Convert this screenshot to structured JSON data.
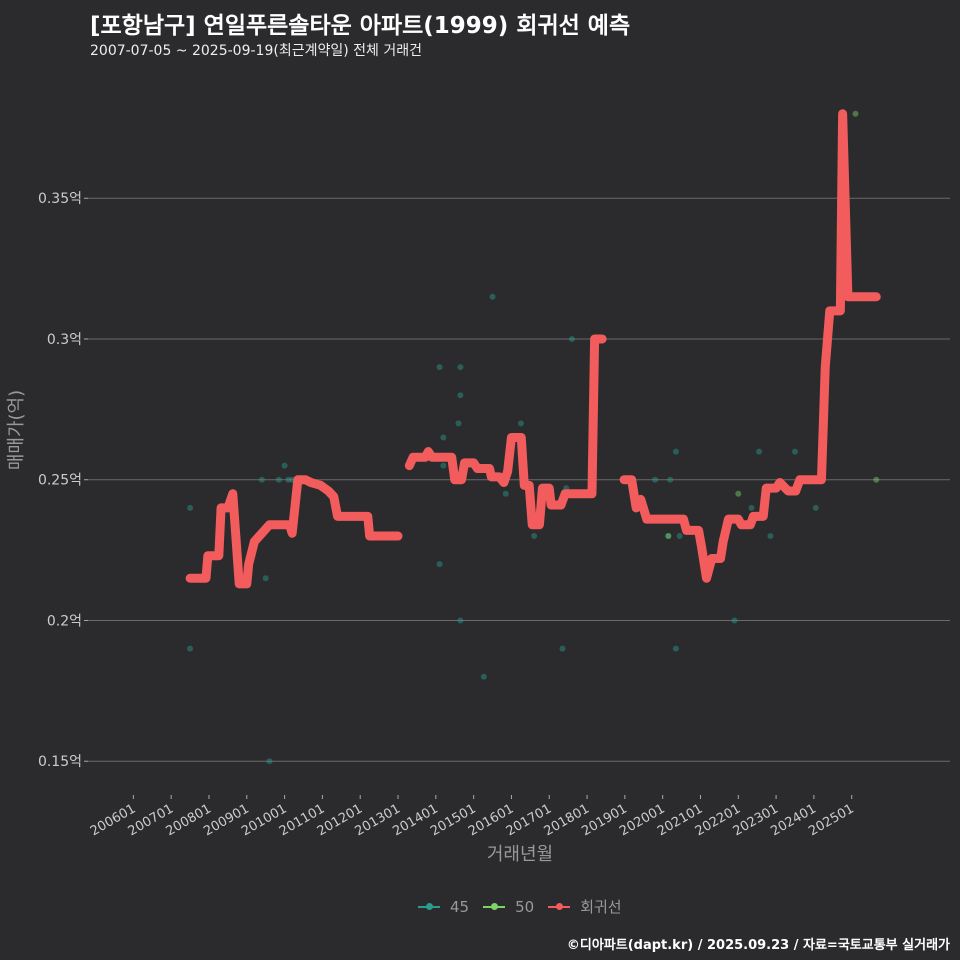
{
  "title": "[포항남구] 연일푸른솔타운 아파트(1999) 회귀선 예측",
  "subtitle": "2007-07-05 ~ 2025-09-19(최근계약일) 전체 거래건",
  "credit": "©디아파트(dapt.kr) / 2025.09.23 / 자료=국토교통부 실거래가",
  "chart_data": {
    "type": "scatter+line",
    "xlabel": "거래년월",
    "ylabel": "매매가(억)",
    "x_ticks": [
      "200601",
      "200701",
      "200801",
      "200901",
      "201001",
      "201101",
      "201201",
      "201301",
      "201401",
      "201501",
      "201601",
      "201701",
      "201801",
      "201901",
      "202001",
      "202101",
      "202201",
      "202301",
      "202401",
      "202501"
    ],
    "y_ticks": [
      {
        "v": 0.15,
        "label": "0.15억"
      },
      {
        "v": 0.2,
        "label": "0.2억"
      },
      {
        "v": 0.25,
        "label": "0.25억"
      },
      {
        "v": 0.3,
        "label": "0.3억"
      },
      {
        "v": 0.35,
        "label": "0.35억"
      }
    ],
    "xlim": [
      2004.8,
      2027.6
    ],
    "ylim": [
      0.138,
      0.392
    ],
    "grid": true,
    "legend_position": "bottom",
    "legend": [
      {
        "name": "45",
        "color": "#2a9d8f"
      },
      {
        "name": "50",
        "color": "#7bd36b"
      },
      {
        "name": "회귀선",
        "color": "#f25c5c"
      }
    ],
    "series_points": [
      {
        "name": "45",
        "points": [
          [
            2007.5,
            0.24
          ],
          [
            2007.5,
            0.19
          ],
          [
            2009.4,
            0.25
          ],
          [
            2009.5,
            0.215
          ],
          [
            2009.6,
            0.15
          ],
          [
            2009.85,
            0.25
          ],
          [
            2010.0,
            0.255
          ],
          [
            2010.1,
            0.25
          ],
          [
            2010.2,
            0.25
          ],
          [
            2014.1,
            0.29
          ],
          [
            2014.1,
            0.22
          ],
          [
            2014.2,
            0.265
          ],
          [
            2014.2,
            0.255
          ],
          [
            2014.6,
            0.27
          ],
          [
            2014.65,
            0.28
          ],
          [
            2014.65,
            0.29
          ],
          [
            2014.65,
            0.2
          ],
          [
            2015.27,
            0.18
          ],
          [
            2015.5,
            0.315
          ],
          [
            2015.85,
            0.245
          ],
          [
            2016.25,
            0.27
          ],
          [
            2016.6,
            0.23
          ],
          [
            2017.35,
            0.19
          ],
          [
            2017.6,
            0.3
          ],
          [
            2017.45,
            0.247
          ],
          [
            2019.8,
            0.25
          ],
          [
            2020.15,
            0.23
          ],
          [
            2020.2,
            0.25
          ],
          [
            2020.35,
            0.26
          ],
          [
            2020.35,
            0.19
          ],
          [
            2020.45,
            0.23
          ],
          [
            2021.9,
            0.2
          ],
          [
            2022.35,
            0.24
          ],
          [
            2022.55,
            0.26
          ],
          [
            2022.85,
            0.23
          ],
          [
            2023.5,
            0.26
          ],
          [
            2024.05,
            0.24
          ]
        ]
      },
      {
        "name": "50",
        "points": [
          [
            2022.0,
            0.245
          ],
          [
            2025.1,
            0.38
          ],
          [
            2025.65,
            0.25
          ],
          [
            2020.15,
            0.23
          ]
        ]
      }
    ],
    "regression_segments": [
      [
        [
          2007.5,
          0.215
        ],
        [
          2007.92,
          0.215
        ],
        [
          2007.97,
          0.223
        ],
        [
          2008.26,
          0.223
        ],
        [
          2008.32,
          0.24
        ],
        [
          2008.5,
          0.24
        ],
        [
          2008.63,
          0.245
        ],
        [
          2008.8,
          0.213
        ],
        [
          2009.0,
          0.213
        ],
        [
          2009.05,
          0.22
        ],
        [
          2009.2,
          0.228
        ],
        [
          2009.4,
          0.231
        ],
        [
          2009.6,
          0.234
        ],
        [
          2010.13,
          0.234
        ],
        [
          2010.2,
          0.231
        ],
        [
          2010.35,
          0.25
        ],
        [
          2010.55,
          0.25
        ],
        [
          2010.7,
          0.249
        ],
        [
          2010.95,
          0.248
        ],
        [
          2011.16,
          0.246
        ],
        [
          2011.3,
          0.244
        ],
        [
          2011.4,
          0.237
        ],
        [
          2012.2,
          0.237
        ],
        [
          2012.25,
          0.23
        ],
        [
          2013.0,
          0.23
        ]
      ],
      [
        [
          2013.3,
          0.255
        ],
        [
          2013.4,
          0.258
        ],
        [
          2013.72,
          0.258
        ],
        [
          2013.8,
          0.26
        ],
        [
          2013.9,
          0.258
        ],
        [
          2014.42,
          0.258
        ],
        [
          2014.5,
          0.25
        ],
        [
          2014.68,
          0.25
        ],
        [
          2014.76,
          0.256
        ],
        [
          2015.0,
          0.256
        ],
        [
          2015.1,
          0.254
        ],
        [
          2015.42,
          0.254
        ],
        [
          2015.47,
          0.251
        ],
        [
          2015.68,
          0.251
        ],
        [
          2015.8,
          0.249
        ],
        [
          2015.9,
          0.253
        ],
        [
          2016.0,
          0.265
        ],
        [
          2016.26,
          0.265
        ],
        [
          2016.34,
          0.248
        ],
        [
          2016.47,
          0.248
        ],
        [
          2016.55,
          0.234
        ],
        [
          2016.74,
          0.234
        ],
        [
          2016.82,
          0.247
        ],
        [
          2017.0,
          0.247
        ],
        [
          2017.05,
          0.241
        ],
        [
          2017.31,
          0.241
        ],
        [
          2017.42,
          0.245
        ],
        [
          2018.13,
          0.245
        ],
        [
          2018.2,
          0.3
        ],
        [
          2018.4,
          0.3
        ]
      ],
      [
        [
          2018.98,
          0.25
        ],
        [
          2019.18,
          0.25
        ],
        [
          2019.3,
          0.24
        ],
        [
          2019.42,
          0.243
        ],
        [
          2019.58,
          0.236
        ],
        [
          2020.55,
          0.236
        ],
        [
          2020.63,
          0.232
        ],
        [
          2020.95,
          0.232
        ],
        [
          2021.03,
          0.226
        ],
        [
          2021.16,
          0.215
        ],
        [
          2021.3,
          0.222
        ],
        [
          2021.53,
          0.222
        ],
        [
          2021.6,
          0.228
        ],
        [
          2021.74,
          0.236
        ],
        [
          2022.0,
          0.236
        ],
        [
          2022.08,
          0.234
        ],
        [
          2022.32,
          0.234
        ],
        [
          2022.4,
          0.237
        ],
        [
          2022.66,
          0.237
        ],
        [
          2022.74,
          0.247
        ],
        [
          2023.0,
          0.247
        ],
        [
          2023.1,
          0.249
        ],
        [
          2023.32,
          0.246
        ],
        [
          2023.52,
          0.246
        ],
        [
          2023.63,
          0.25
        ],
        [
          2024.2,
          0.25
        ],
        [
          2024.3,
          0.29
        ],
        [
          2024.42,
          0.31
        ],
        [
          2024.7,
          0.31
        ],
        [
          2024.76,
          0.38
        ],
        [
          2024.9,
          0.315
        ],
        [
          2025.65,
          0.315
        ]
      ]
    ]
  }
}
